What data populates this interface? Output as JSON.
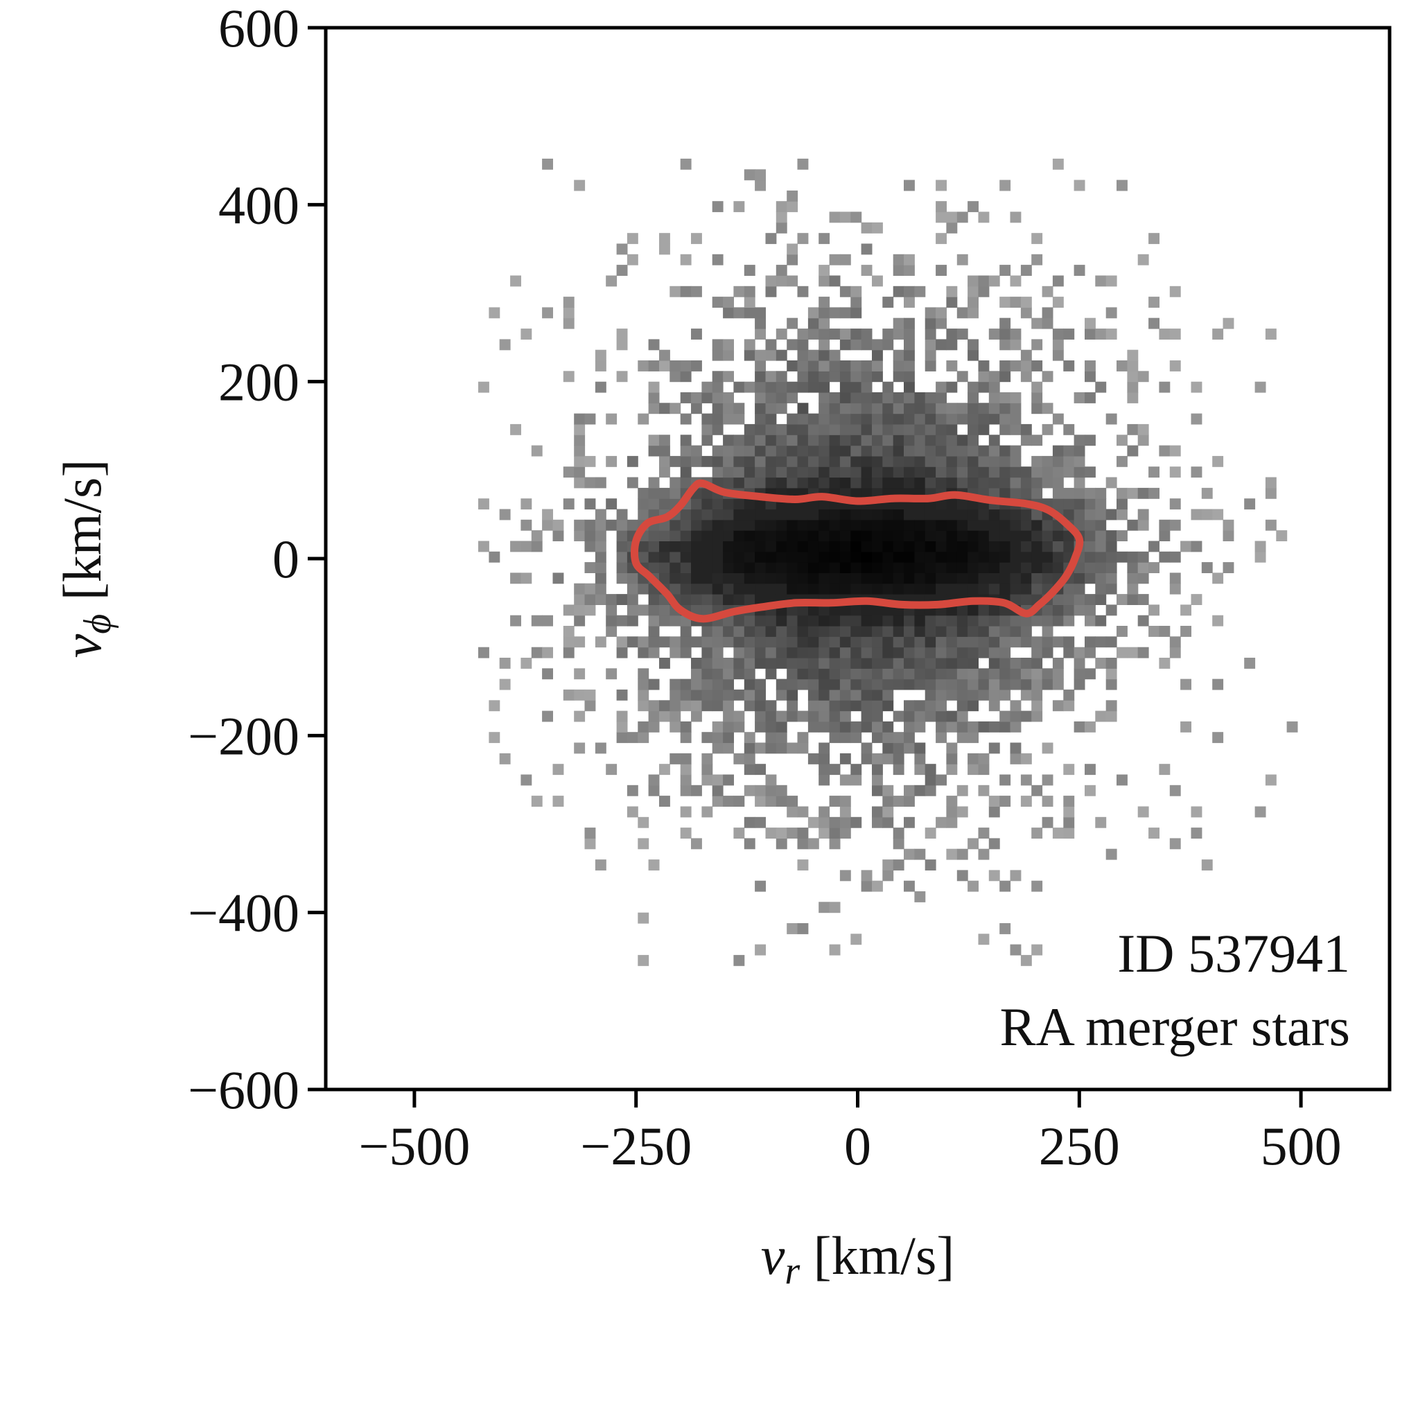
{
  "chart_data": {
    "type": "heatmap",
    "title": "",
    "xlabel": {
      "symbol": "v",
      "subscript": "r",
      "units": " [km/s]"
    },
    "ylabel": {
      "symbol": "v",
      "subscript": "ϕ",
      "units": " [km/s]"
    },
    "xlim": [
      -600,
      600
    ],
    "ylim": [
      -600,
      600
    ],
    "xticks": [
      -500,
      -250,
      0,
      250,
      500
    ],
    "xtick_labels": [
      "−500",
      "−250",
      "0",
      "250",
      "500"
    ],
    "yticks": [
      -600,
      -400,
      -200,
      0,
      200,
      400,
      600
    ],
    "ytick_labels": [
      "−600",
      "−400",
      "−200",
      "0",
      "200",
      "400",
      "600"
    ],
    "grid": false,
    "annotations": [
      "ID 537941",
      "RA merger stars"
    ],
    "annotation_position": "bottom-right",
    "colormap": "greys",
    "histogram": {
      "bin_width_kms": 12,
      "core_center": [
        0,
        0
      ],
      "core_sigma_x": 150,
      "core_sigma_y": 42,
      "halo_sigma_x": 175,
      "halo_sigma_y": 185,
      "extent_x": [
        -440,
        490
      ],
      "extent_y": [
        -460,
        450
      ]
    },
    "contour": {
      "color": "#d6493e",
      "points": [
        [
          -175,
          85
        ],
        [
          -150,
          75
        ],
        [
          -110,
          70
        ],
        [
          -70,
          67
        ],
        [
          -40,
          70
        ],
        [
          0,
          65
        ],
        [
          40,
          68
        ],
        [
          80,
          68
        ],
        [
          110,
          72
        ],
        [
          150,
          66
        ],
        [
          190,
          62
        ],
        [
          215,
          55
        ],
        [
          235,
          40
        ],
        [
          250,
          22
        ],
        [
          245,
          0
        ],
        [
          235,
          -20
        ],
        [
          220,
          -38
        ],
        [
          205,
          -52
        ],
        [
          190,
          -62
        ],
        [
          165,
          -50
        ],
        [
          130,
          -48
        ],
        [
          90,
          -52
        ],
        [
          50,
          -52
        ],
        [
          10,
          -48
        ],
        [
          -30,
          -50
        ],
        [
          -70,
          -50
        ],
        [
          -110,
          -55
        ],
        [
          -140,
          -60
        ],
        [
          -175,
          -68
        ],
        [
          -200,
          -58
        ],
        [
          -215,
          -40
        ],
        [
          -235,
          -20
        ],
        [
          -250,
          -5
        ],
        [
          -250,
          20
        ],
        [
          -237,
          40
        ],
        [
          -215,
          47
        ],
        [
          -200,
          60
        ],
        [
          -185,
          80
        ]
      ]
    }
  }
}
